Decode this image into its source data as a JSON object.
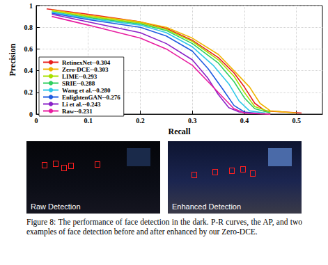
{
  "chart_data": {
    "type": "line",
    "x_label": "Recall",
    "y_label": "Precision",
    "xlim": [
      0,
      0.55
    ],
    "ylim": [
      0,
      1
    ],
    "xticks": [
      0,
      0.1,
      0.2,
      0.3,
      0.4,
      0.5
    ],
    "yticks": [
      0,
      0.2,
      0.4,
      0.6,
      0.8,
      1
    ],
    "grid": true,
    "legend": "lower left",
    "series": [
      {
        "name": "RetinexNet--0.304",
        "color": "#e8201c",
        "x": [
          0.02,
          0.1,
          0.2,
          0.25,
          0.3,
          0.35,
          0.38,
          0.4,
          0.42,
          0.44,
          0.51
        ],
        "values": [
          0.97,
          0.92,
          0.85,
          0.79,
          0.68,
          0.52,
          0.38,
          0.25,
          0.1,
          0.03,
          0.01
        ]
      },
      {
        "name": "Zero-DCE--0.303",
        "color": "#f0b400",
        "x": [
          0.03,
          0.1,
          0.2,
          0.25,
          0.3,
          0.35,
          0.38,
          0.41,
          0.43,
          0.45,
          0.5
        ],
        "values": [
          0.96,
          0.91,
          0.85,
          0.8,
          0.7,
          0.55,
          0.4,
          0.25,
          0.1,
          0.03,
          0.01
        ]
      },
      {
        "name": "LIME--0.293",
        "color": "#a8e000",
        "x": [
          0.03,
          0.1,
          0.2,
          0.25,
          0.3,
          0.35,
          0.38,
          0.4,
          0.42,
          0.45
        ],
        "values": [
          0.95,
          0.9,
          0.84,
          0.78,
          0.67,
          0.5,
          0.35,
          0.2,
          0.07,
          0.02
        ]
      },
      {
        "name": "SRIE--0.288",
        "color": "#30d060",
        "x": [
          0.03,
          0.1,
          0.2,
          0.25,
          0.3,
          0.35,
          0.38,
          0.4,
          0.42,
          0.45
        ],
        "values": [
          0.94,
          0.89,
          0.83,
          0.77,
          0.65,
          0.47,
          0.3,
          0.15,
          0.05,
          0.01
        ]
      },
      {
        "name": "Wang et al.--0.280",
        "color": "#30c8e8",
        "x": [
          0.03,
          0.1,
          0.2,
          0.25,
          0.3,
          0.34,
          0.37,
          0.39,
          0.41,
          0.44
        ],
        "values": [
          0.94,
          0.88,
          0.82,
          0.75,
          0.62,
          0.45,
          0.28,
          0.12,
          0.03,
          0.01
        ]
      },
      {
        "name": "EnlightenGAN--0.276",
        "color": "#1f5ce0",
        "x": [
          0.03,
          0.1,
          0.2,
          0.25,
          0.3,
          0.33,
          0.36,
          0.38,
          0.4,
          0.43
        ],
        "values": [
          0.93,
          0.87,
          0.8,
          0.72,
          0.58,
          0.42,
          0.22,
          0.08,
          0.02,
          0.005
        ]
      },
      {
        "name": "Li et al.--0.243",
        "color": "#8a22c8",
        "x": [
          0.03,
          0.1,
          0.2,
          0.25,
          0.3,
          0.33,
          0.35,
          0.37,
          0.39,
          0.42
        ],
        "values": [
          0.92,
          0.85,
          0.75,
          0.65,
          0.5,
          0.33,
          0.18,
          0.06,
          0.02,
          0.005
        ]
      },
      {
        "name": "Raw--0.231",
        "color": "#e81ca0",
        "x": [
          0.03,
          0.1,
          0.2,
          0.25,
          0.3,
          0.33,
          0.36,
          0.38,
          0.4,
          0.45
        ],
        "values": [
          0.9,
          0.82,
          0.7,
          0.6,
          0.45,
          0.3,
          0.15,
          0.05,
          0.01,
          0.0
        ]
      }
    ]
  },
  "panels": [
    {
      "label": "Raw Detection"
    },
    {
      "label": "Enhanced Detection"
    }
  ],
  "caption": "Figure 8: The performance of face detection in the dark. P-R curves, the AP, and two examples of face detection before and after enhanced by our Zero-DCE."
}
